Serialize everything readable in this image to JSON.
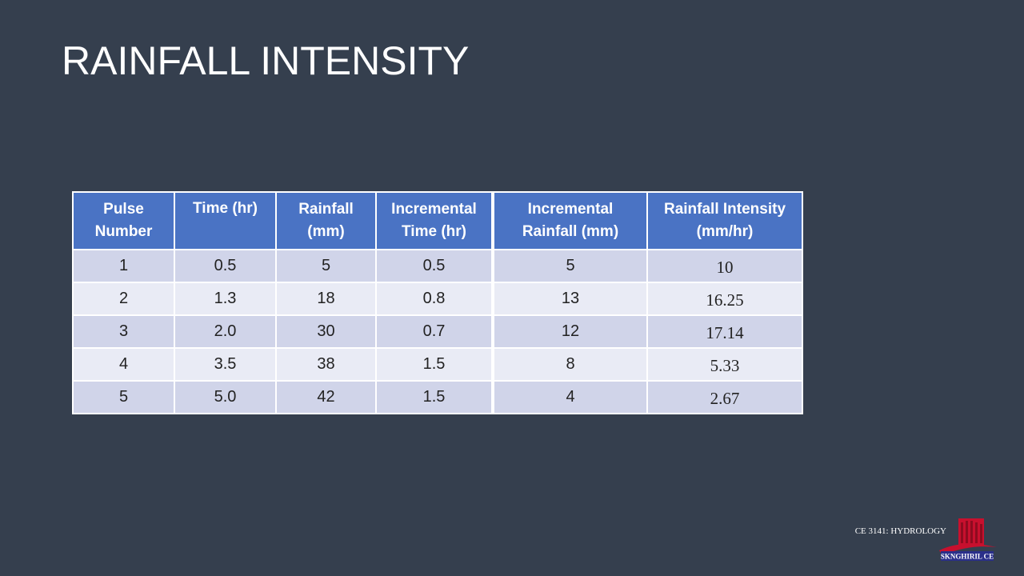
{
  "slide": {
    "title": "RAINFALL INTENSITY",
    "footer_course": "CE 3141: HYDROLOGY",
    "logo_text": "SKNGHIRIL CE"
  },
  "table": {
    "headers": [
      {
        "line1": "Pulse",
        "line2": "Number"
      },
      {
        "line1": "Time (hr)",
        "line2": ""
      },
      {
        "line1": "Rainfall",
        "line2": "(mm)"
      },
      {
        "line1": "Incremental",
        "line2": "Time (hr)"
      },
      {
        "line1": "Incremental",
        "line2": "Rainfall (mm)"
      },
      {
        "line1": "Rainfall Intensity",
        "line2": "(mm/hr)"
      }
    ],
    "rows": [
      [
        "1",
        "0.5",
        "5",
        "0.5",
        "5",
        "10"
      ],
      [
        "2",
        "1.3",
        "18",
        "0.8",
        "13",
        "16.25"
      ],
      [
        "3",
        "2.0",
        "30",
        "0.7",
        "12",
        "17.14"
      ],
      [
        "4",
        "3.5",
        "38",
        "1.5",
        "8",
        "5.33"
      ],
      [
        "5",
        "5.0",
        "42",
        "1.5",
        "4",
        "2.67"
      ]
    ]
  },
  "colors": {
    "background": "#353f4e",
    "header": "#4a73c4",
    "row_odd": "#d0d4e9",
    "row_even": "#e9ebf5",
    "logo_red": "#c8102e",
    "logo_blue": "#2a2f8a"
  }
}
